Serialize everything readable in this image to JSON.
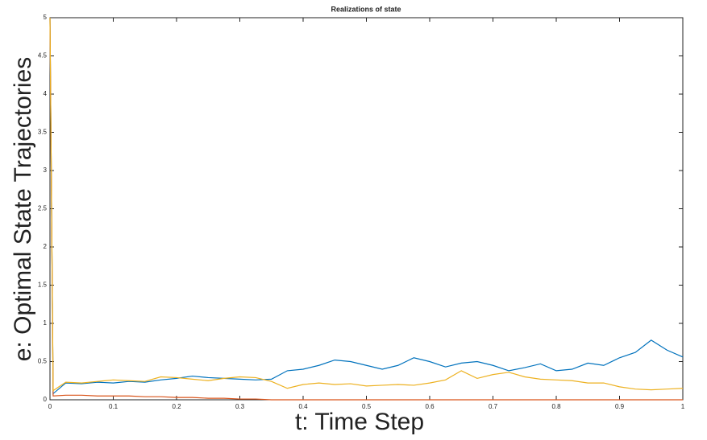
{
  "chart_data": {
    "type": "line",
    "title": "Realizations of state",
    "x_label": "t: Time Step",
    "y_label": "e: Optimal State Trajectories",
    "x": [
      0,
      0.005,
      0.025,
      0.05,
      0.075,
      0.1,
      0.125,
      0.15,
      0.175,
      0.2,
      0.225,
      0.25,
      0.275,
      0.3,
      0.325,
      0.35,
      0.375,
      0.4,
      0.425,
      0.45,
      0.475,
      0.5,
      0.525,
      0.55,
      0.575,
      0.6,
      0.625,
      0.65,
      0.675,
      0.7,
      0.725,
      0.75,
      0.775,
      0.8,
      0.825,
      0.85,
      0.875,
      0.9,
      0.925,
      0.95,
      0.975,
      1
    ],
    "series": [
      {
        "color": "#0072bd",
        "values": [
          5,
          0.08,
          0.22,
          0.21,
          0.23,
          0.22,
          0.24,
          0.23,
          0.26,
          0.28,
          0.31,
          0.29,
          0.28,
          0.27,
          0.26,
          0.27,
          0.38,
          0.4,
          0.45,
          0.52,
          0.5,
          0.45,
          0.4,
          0.45,
          0.55,
          0.5,
          0.43,
          0.48,
          0.5,
          0.45,
          0.38,
          0.42,
          0.47,
          0.38,
          0.4,
          0.48,
          0.45,
          0.55,
          0.62,
          0.78,
          0.65,
          0.56
        ]
      },
      {
        "color": "#d95319",
        "values": [
          5,
          0.05,
          0.06,
          0.06,
          0.05,
          0.05,
          0.05,
          0.04,
          0.04,
          0.03,
          0.03,
          0.02,
          0.02,
          0.01,
          0.01,
          0,
          0,
          0,
          0,
          0,
          0,
          0,
          0,
          0,
          0,
          0,
          0,
          0,
          0,
          0,
          0,
          0,
          0,
          0,
          0,
          0,
          0,
          0,
          0,
          0,
          0,
          0
        ]
      },
      {
        "color": "#edb120",
        "values": [
          5,
          0.12,
          0.23,
          0.22,
          0.24,
          0.26,
          0.25,
          0.24,
          0.3,
          0.29,
          0.27,
          0.25,
          0.28,
          0.3,
          0.29,
          0.24,
          0.15,
          0.2,
          0.22,
          0.2,
          0.21,
          0.18,
          0.19,
          0.2,
          0.19,
          0.22,
          0.26,
          0.38,
          0.28,
          0.33,
          0.36,
          0.3,
          0.27,
          0.26,
          0.25,
          0.22,
          0.22,
          0.17,
          0.14,
          0.13,
          0.14,
          0.15
        ]
      }
    ],
    "xlim": [
      0,
      1
    ],
    "xticks": [
      0,
      0.1,
      0.2,
      0.3,
      0.4,
      0.5,
      0.6,
      0.7,
      0.8,
      0.9,
      1
    ],
    "ylim": [
      0,
      5
    ],
    "yticks": [
      0,
      0.5,
      1,
      1.5,
      2,
      2.5,
      3,
      3.5,
      4,
      4.5,
      5
    ]
  }
}
